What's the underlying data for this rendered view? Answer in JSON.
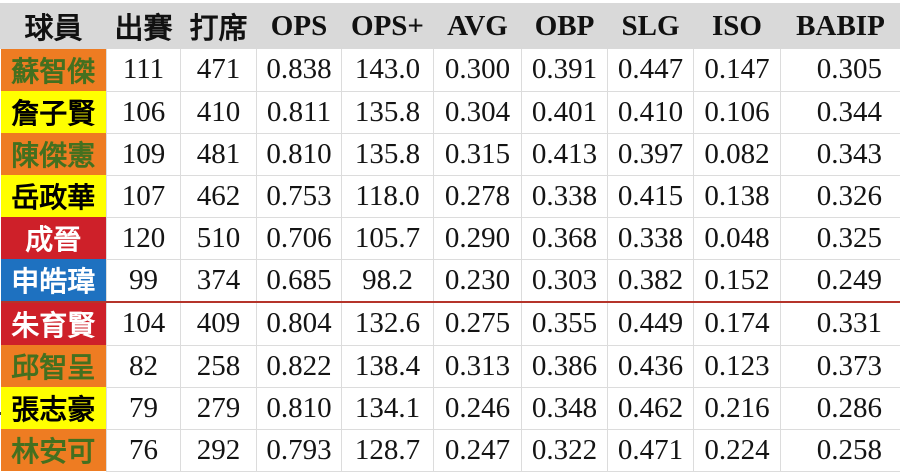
{
  "chart_data": {
    "type": "table",
    "title": "",
    "columns": [
      {
        "key": "player",
        "label": "球員"
      },
      {
        "key": "games",
        "label": "出賽"
      },
      {
        "key": "pa",
        "label": "打席"
      },
      {
        "key": "ops",
        "label": "OPS"
      },
      {
        "key": "ops_plus",
        "label": "OPS+"
      },
      {
        "key": "avg",
        "label": "AVG"
      },
      {
        "key": "obp",
        "label": "OBP"
      },
      {
        "key": "slg",
        "label": "SLG"
      },
      {
        "key": "iso",
        "label": "ISO"
      },
      {
        "key": "babip",
        "label": "BABIP"
      }
    ],
    "rows": [
      {
        "player": "蘇智傑",
        "style": "orange",
        "values": [
          "111",
          "471",
          "0.838",
          "143.0",
          "0.300",
          "0.391",
          "0.447",
          "0.147",
          "0.305"
        ],
        "separator_after": false
      },
      {
        "player": "詹子賢",
        "style": "yellow",
        "values": [
          "106",
          "410",
          "0.811",
          "135.8",
          "0.304",
          "0.401",
          "0.410",
          "0.106",
          "0.344"
        ],
        "separator_after": false
      },
      {
        "player": "陳傑憲",
        "style": "orange",
        "values": [
          "109",
          "481",
          "0.810",
          "135.8",
          "0.315",
          "0.413",
          "0.397",
          "0.082",
          "0.343"
        ],
        "separator_after": false
      },
      {
        "player": "岳政華",
        "style": "yellow",
        "values": [
          "107",
          "462",
          "0.753",
          "118.0",
          "0.278",
          "0.338",
          "0.415",
          "0.138",
          "0.326"
        ],
        "separator_after": false
      },
      {
        "player": "成晉",
        "style": "red",
        "values": [
          "120",
          "510",
          "0.706",
          "105.7",
          "0.290",
          "0.368",
          "0.338",
          "0.048",
          "0.325"
        ],
        "separator_after": false
      },
      {
        "player": "申皓瑋",
        "style": "blue",
        "values": [
          "99",
          "374",
          "0.685",
          "98.2",
          "0.230",
          "0.303",
          "0.382",
          "0.152",
          "0.249"
        ],
        "separator_after": true
      },
      {
        "player": "朱育賢",
        "style": "red",
        "values": [
          "104",
          "409",
          "0.804",
          "132.6",
          "0.275",
          "0.355",
          "0.449",
          "0.174",
          "0.331"
        ],
        "separator_after": false
      },
      {
        "player": "邱智呈",
        "style": "orange",
        "values": [
          "82",
          "258",
          "0.822",
          "138.4",
          "0.313",
          "0.386",
          "0.436",
          "0.123",
          "0.373"
        ],
        "separator_after": false
      },
      {
        "player": "張志豪",
        "style": "yellow",
        "values": [
          "79",
          "279",
          "0.810",
          "134.1",
          "0.246",
          "0.348",
          "0.462",
          "0.216",
          "0.286"
        ],
        "separator_after": false
      },
      {
        "player": "林安可",
        "style": "orange",
        "values": [
          "76",
          "292",
          "0.793",
          "128.7",
          "0.247",
          "0.322",
          "0.471",
          "0.224",
          "0.258"
        ],
        "separator_after": false
      }
    ],
    "layout": {
      "header_background": "#d9d9d9",
      "separator_line_color": "#b5342a",
      "separator_after_row_index": 5,
      "name_cell_styles": {
        "orange": {
          "background": "#ee7c22",
          "text": "#44701f"
        },
        "yellow": {
          "background": "#ffff00",
          "text": "#000000"
        },
        "red": {
          "background": "#ce2029",
          "text": "#ffffff"
        },
        "blue": {
          "background": "#1e71c0",
          "text": "#ffffff"
        }
      }
    }
  }
}
